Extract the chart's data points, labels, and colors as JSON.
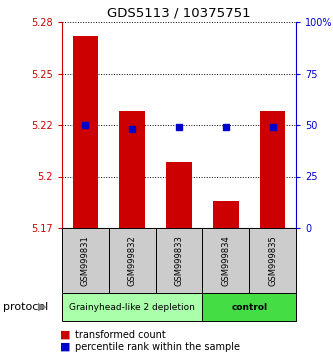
{
  "title": "GDS5113 / 10375751",
  "samples": [
    "GSM999831",
    "GSM999832",
    "GSM999833",
    "GSM999834",
    "GSM999835"
  ],
  "bar_values": [
    5.268,
    5.232,
    5.207,
    5.188,
    5.232
  ],
  "bar_baseline": 5.175,
  "percentile_values": [
    50,
    48,
    49,
    49,
    49
  ],
  "ylim_left": [
    5.175,
    5.275
  ],
  "ylim_right": [
    0,
    100
  ],
  "yticks_left": [
    5.175,
    5.2,
    5.225,
    5.25,
    5.275
  ],
  "yticks_right": [
    0,
    25,
    50,
    75,
    100
  ],
  "ytick_labels_right": [
    "0",
    "25",
    "50",
    "75",
    "100%"
  ],
  "bar_color": "#cc0000",
  "percentile_color": "#0000cc",
  "groups": [
    {
      "label": "Grainyhead-like 2 depletion",
      "samples": [
        0,
        1,
        2
      ],
      "color": "#aaffaa",
      "bold": false
    },
    {
      "label": "control",
      "samples": [
        3,
        4
      ],
      "color": "#44dd44",
      "bold": true
    }
  ],
  "protocol_label": "protocol",
  "legend_bar_label": "transformed count",
  "legend_pct_label": "percentile rank within the sample",
  "bar_color_legend": "#cc0000",
  "pct_color_legend": "#0000cc",
  "sample_bg": "#cccccc",
  "bar_width": 0.55,
  "grid_linestyle": ":",
  "grid_color": "#000000",
  "grid_linewidth": 0.7
}
